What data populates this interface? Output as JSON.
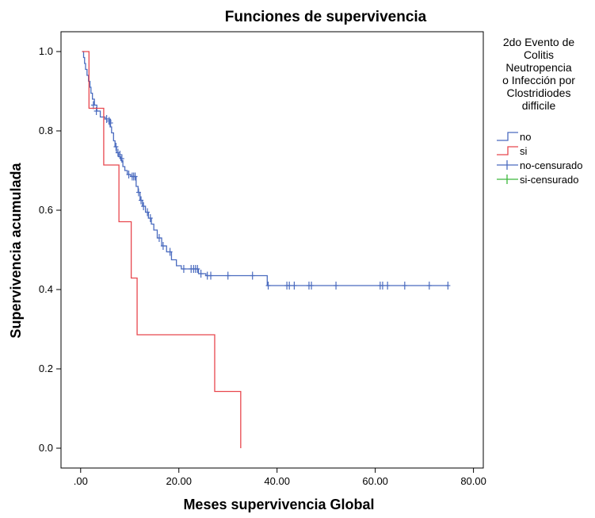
{
  "chart_data": {
    "type": "line",
    "title": "Funciones de supervivencia",
    "xlabel": "Meses supervivencia Global",
    "ylabel": "Supervivencia acumulada",
    "xlim": [
      -4,
      82
    ],
    "ylim": [
      -0.05,
      1.05
    ],
    "x_ticks": [
      0,
      20,
      40,
      60,
      80
    ],
    "x_tick_labels": [
      ".00",
      "20.00",
      "40.00",
      "60.00",
      "80.00"
    ],
    "y_ticks": [
      0,
      0.2,
      0.4,
      0.6,
      0.8,
      1.0
    ],
    "y_tick_labels": [
      "0.0",
      "0.2",
      "0.4",
      "0.6",
      "0.8",
      "1.0"
    ],
    "grid": false,
    "legend": {
      "placement": "right",
      "title_lines": [
        "2do Evento de",
        "Colitis",
        "Neutropencia",
        "o Infección por",
        "Clostridiodes",
        "difficile"
      ],
      "entries": [
        {
          "label": "no",
          "color": "#4a6bbf",
          "marker": "step"
        },
        {
          "label": "si",
          "color": "#e8474e",
          "marker": "step"
        },
        {
          "label": "no-censurado",
          "color": "#4a6bbf",
          "marker": "plus"
        },
        {
          "label": "si-censurado",
          "color": "#3cb83c",
          "marker": "plus"
        }
      ]
    },
    "series": [
      {
        "name": "no",
        "color": "#4a6bbf",
        "steps": [
          [
            0.3,
            1.0
          ],
          [
            0.6,
            0.985
          ],
          [
            0.8,
            0.97
          ],
          [
            1.0,
            0.955
          ],
          [
            1.3,
            0.94
          ],
          [
            1.6,
            0.925
          ],
          [
            1.9,
            0.91
          ],
          [
            2.1,
            0.895
          ],
          [
            2.4,
            0.88
          ],
          [
            2.8,
            0.865
          ],
          [
            3.3,
            0.85
          ],
          [
            4.0,
            0.835
          ],
          [
            5.0,
            0.83
          ],
          [
            6.0,
            0.81
          ],
          [
            6.3,
            0.795
          ],
          [
            6.7,
            0.775
          ],
          [
            7.0,
            0.76
          ],
          [
            7.3,
            0.745
          ],
          [
            7.7,
            0.735
          ],
          [
            8.2,
            0.725
          ],
          [
            8.6,
            0.71
          ],
          [
            9.0,
            0.7
          ],
          [
            9.5,
            0.69
          ],
          [
            10.2,
            0.685
          ],
          [
            11.3,
            0.66
          ],
          [
            11.7,
            0.645
          ],
          [
            12.1,
            0.625
          ],
          [
            12.6,
            0.61
          ],
          [
            13.2,
            0.595
          ],
          [
            13.8,
            0.58
          ],
          [
            14.4,
            0.565
          ],
          [
            14.9,
            0.55
          ],
          [
            15.6,
            0.53
          ],
          [
            16.5,
            0.51
          ],
          [
            17.5,
            0.495
          ],
          [
            18.5,
            0.475
          ],
          [
            19.5,
            0.46
          ],
          [
            20.5,
            0.452
          ],
          [
            24.0,
            0.44
          ],
          [
            25.5,
            0.435
          ],
          [
            38.0,
            0.41
          ],
          [
            74.8,
            0.41
          ]
        ],
        "censored": [
          [
            2.6,
            0.865
          ],
          [
            3.2,
            0.85
          ],
          [
            5.3,
            0.83
          ],
          [
            5.8,
            0.825
          ],
          [
            6.1,
            0.82
          ],
          [
            7.2,
            0.76
          ],
          [
            7.6,
            0.745
          ],
          [
            8.0,
            0.74
          ],
          [
            8.4,
            0.73
          ],
          [
            9.8,
            0.69
          ],
          [
            10.5,
            0.685
          ],
          [
            10.8,
            0.685
          ],
          [
            11.1,
            0.685
          ],
          [
            11.8,
            0.645
          ],
          [
            12.3,
            0.625
          ],
          [
            12.8,
            0.61
          ],
          [
            13.6,
            0.595
          ],
          [
            14.2,
            0.58
          ],
          [
            16.0,
            0.53
          ],
          [
            16.8,
            0.51
          ],
          [
            18.2,
            0.495
          ],
          [
            21.0,
            0.452
          ],
          [
            22.5,
            0.452
          ],
          [
            23.0,
            0.452
          ],
          [
            23.4,
            0.452
          ],
          [
            23.8,
            0.452
          ],
          [
            24.5,
            0.44
          ],
          [
            25.8,
            0.435
          ],
          [
            26.5,
            0.435
          ],
          [
            30.0,
            0.435
          ],
          [
            35.0,
            0.435
          ],
          [
            38.2,
            0.41
          ],
          [
            42.0,
            0.41
          ],
          [
            42.5,
            0.41
          ],
          [
            43.5,
            0.41
          ],
          [
            46.5,
            0.41
          ],
          [
            47.0,
            0.41
          ],
          [
            52.0,
            0.41
          ],
          [
            61.0,
            0.41
          ],
          [
            61.5,
            0.41
          ],
          [
            62.5,
            0.41
          ],
          [
            66.0,
            0.41
          ],
          [
            71.0,
            0.41
          ],
          [
            74.8,
            0.41
          ]
        ]
      },
      {
        "name": "si",
        "color": "#e8474e",
        "steps": [
          [
            0.3,
            1.0
          ],
          [
            1.7,
            0.857
          ],
          [
            4.7,
            0.714
          ],
          [
            7.8,
            0.571
          ],
          [
            10.3,
            0.429
          ],
          [
            11.5,
            0.286
          ],
          [
            27.3,
            0.143
          ],
          [
            32.6,
            0.0
          ]
        ],
        "censored": []
      }
    ]
  }
}
